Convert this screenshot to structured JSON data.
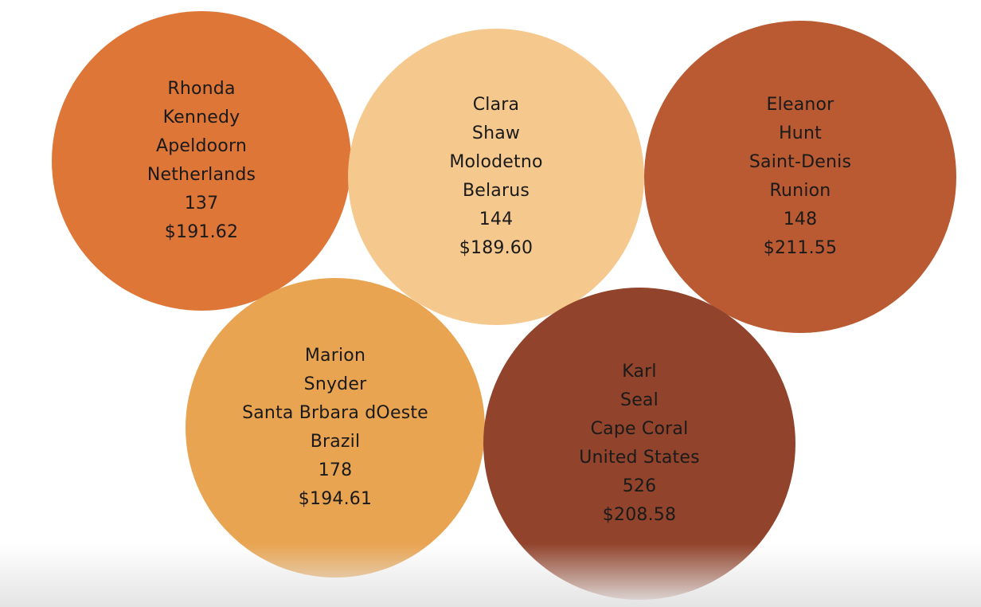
{
  "chart_data": {
    "type": "bubble",
    "fields": [
      "first_name",
      "last_name",
      "city",
      "country",
      "count",
      "amount"
    ],
    "bubbles": [
      {
        "first_name": "Rhonda",
        "last_name": "Kennedy",
        "city": "Apeldoorn",
        "country": "Netherlands",
        "count": "137",
        "amount": "$191.62",
        "color": "#DE7638"
      },
      {
        "first_name": "Clara",
        "last_name": "Shaw",
        "city": "Molodetno",
        "country": "Belarus",
        "count": "144",
        "amount": "$189.60",
        "color": "#F5C88D"
      },
      {
        "first_name": "Eleanor",
        "last_name": "Hunt",
        "city": "Saint-Denis",
        "country": "Runion",
        "count": "148",
        "amount": "$211.55",
        "color": "#B95A32"
      },
      {
        "first_name": "Marion",
        "last_name": "Snyder",
        "city": "Santa Brbara dOeste",
        "country": "Brazil",
        "count": "178",
        "amount": "$194.61",
        "color": "#E8A451"
      },
      {
        "first_name": "Karl",
        "last_name": "Seal",
        "city": "Cape Coral",
        "country": "United States",
        "count": "526",
        "amount": "$208.58",
        "color": "#91432B"
      }
    ]
  }
}
